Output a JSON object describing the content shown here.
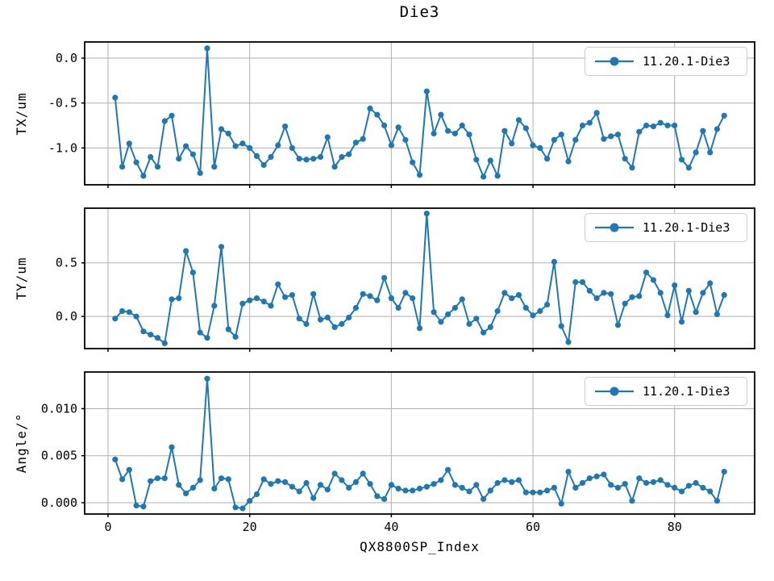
{
  "chart_data": {
    "type": "line",
    "title": "Die3",
    "x_label": "QX8800SP_Index",
    "grid": true,
    "legend_position": "upper right",
    "marker": "circle",
    "line_color": "#1f77b4",
    "grid_color": "#b0b0b0",
    "spine_color": "#000000",
    "x_ticks": [
      0,
      20,
      40,
      60,
      80
    ],
    "xlim": [
      -3.3,
      91.3
    ],
    "x": [
      1,
      2,
      3,
      4,
      5,
      6,
      7,
      8,
      9,
      10,
      11,
      12,
      13,
      14,
      15,
      16,
      17,
      18,
      19,
      20,
      21,
      22,
      23,
      24,
      25,
      26,
      27,
      28,
      29,
      30,
      31,
      32,
      33,
      34,
      35,
      36,
      37,
      38,
      39,
      40,
      41,
      42,
      43,
      44,
      45,
      46,
      47,
      48,
      49,
      50,
      51,
      52,
      53,
      54,
      55,
      56,
      57,
      58,
      59,
      60,
      61,
      62,
      63,
      64,
      65,
      66,
      67,
      68,
      69,
      70,
      71,
      72,
      73,
      74,
      75,
      76,
      77,
      78,
      79,
      80,
      81,
      82,
      83,
      84,
      85,
      86,
      87
    ],
    "subplots": [
      {
        "ylabel": "TX/um",
        "ylim": [
          -1.41,
          0.18
        ],
        "y_ticks": [
          {
            "label": "0.0",
            "value": 0.0
          },
          {
            "label": "-0.5",
            "value": -0.5
          },
          {
            "label": "-1.0",
            "value": -1.0
          }
        ],
        "series": [
          {
            "name": "11.20.1-Die3",
            "values": [
              -0.44,
              -1.21,
              -0.95,
              -1.16,
              -1.31,
              -1.1,
              -1.21,
              -0.7,
              -0.64,
              -1.12,
              -0.98,
              -1.07,
              -1.28,
              0.11,
              -1.21,
              -0.79,
              -0.84,
              -0.98,
              -0.95,
              -1.0,
              -1.09,
              -1.19,
              -1.1,
              -0.97,
              -0.76,
              -1.0,
              -1.12,
              -1.13,
              -1.12,
              -1.1,
              -0.88,
              -1.21,
              -1.1,
              -1.07,
              -0.94,
              -0.9,
              -0.56,
              -0.63,
              -0.75,
              -0.97,
              -0.77,
              -0.91,
              -1.16,
              -1.3,
              -0.37,
              -0.84,
              -0.63,
              -0.81,
              -0.84,
              -0.75,
              -0.85,
              -1.13,
              -1.32,
              -1.14,
              -1.31,
              -0.81,
              -0.95,
              -0.69,
              -0.78,
              -0.97,
              -1.0,
              -1.12,
              -0.91,
              -0.85,
              -1.15,
              -0.91,
              -0.75,
              -0.72,
              -0.61,
              -0.9,
              -0.87,
              -0.85,
              -1.12,
              -1.22,
              -0.82,
              -0.75,
              -0.76,
              -0.72,
              -0.75,
              -0.75,
              -1.13,
              -1.22,
              -1.05,
              -0.81,
              -1.05,
              -0.79,
              -0.64
            ]
          }
        ]
      },
      {
        "ylabel": "TY/um",
        "ylim": [
          -0.3,
          1.01
        ],
        "y_ticks": [
          {
            "label": "0.5",
            "value": 0.5
          },
          {
            "label": "0.0",
            "value": 0.0
          }
        ],
        "series": [
          {
            "name": "11.20.1-Die3",
            "values": [
              -0.02,
              0.05,
              0.04,
              0.0,
              -0.14,
              -0.17,
              -0.2,
              -0.25,
              0.16,
              0.17,
              0.61,
              0.41,
              -0.15,
              -0.2,
              0.1,
              0.65,
              -0.12,
              -0.19,
              0.12,
              0.15,
              0.17,
              0.14,
              0.1,
              0.3,
              0.18,
              0.2,
              -0.02,
              -0.07,
              0.21,
              -0.03,
              -0.01,
              -0.1,
              -0.07,
              -0.01,
              0.08,
              0.21,
              0.19,
              0.15,
              0.36,
              0.17,
              0.08,
              0.22,
              0.17,
              -0.11,
              0.96,
              0.04,
              -0.05,
              0.02,
              0.08,
              0.16,
              -0.07,
              -0.02,
              -0.15,
              -0.1,
              0.05,
              0.22,
              0.17,
              0.2,
              0.08,
              0.01,
              0.05,
              0.11,
              0.51,
              -0.09,
              -0.24,
              0.32,
              0.32,
              0.24,
              0.17,
              0.22,
              0.21,
              -0.08,
              0.12,
              0.18,
              0.19,
              0.41,
              0.34,
              0.22,
              0.01,
              0.29,
              -0.05,
              0.24,
              0.04,
              0.22,
              0.31,
              0.02,
              0.2
            ]
          }
        ]
      },
      {
        "ylabel": "Angle/°",
        "ylim": [
          -0.0012,
          0.0139
        ],
        "y_ticks": [
          {
            "label": "0.010",
            "value": 0.01
          },
          {
            "label": "0.005",
            "value": 0.005
          },
          {
            "label": "0.000",
            "value": 0.0
          }
        ],
        "series": [
          {
            "name": "11.20.1-Die3",
            "values": [
              0.0046,
              0.0025,
              0.0035,
              -0.0003,
              -0.0004,
              0.0023,
              0.0026,
              0.0026,
              0.0059,
              0.0019,
              0.001,
              0.0016,
              0.0024,
              0.0132,
              0.0015,
              0.0026,
              0.0025,
              -0.0005,
              -0.0006,
              0.0002,
              0.0009,
              0.0025,
              0.002,
              0.0023,
              0.0022,
              0.0017,
              0.0012,
              0.0021,
              0.0005,
              0.0019,
              0.0014,
              0.0031,
              0.0024,
              0.0016,
              0.0022,
              0.0031,
              0.002,
              0.0007,
              0.0004,
              0.0019,
              0.0015,
              0.0013,
              0.0013,
              0.0015,
              0.0017,
              0.002,
              0.0024,
              0.0035,
              0.0019,
              0.0016,
              0.0012,
              0.0019,
              0.0004,
              0.0013,
              0.0021,
              0.0024,
              0.0022,
              0.0024,
              0.0011,
              0.0011,
              0.0011,
              0.0013,
              0.0016,
              -0.0001,
              0.0033,
              0.0016,
              0.0021,
              0.0026,
              0.0028,
              0.003,
              0.0019,
              0.0016,
              0.002,
              0.0002,
              0.0026,
              0.0021,
              0.0022,
              0.0024,
              0.0019,
              0.0016,
              0.0012,
              0.0018,
              0.0021,
              0.0016,
              0.0012,
              0.0002,
              0.0033
            ]
          }
        ]
      }
    ]
  }
}
